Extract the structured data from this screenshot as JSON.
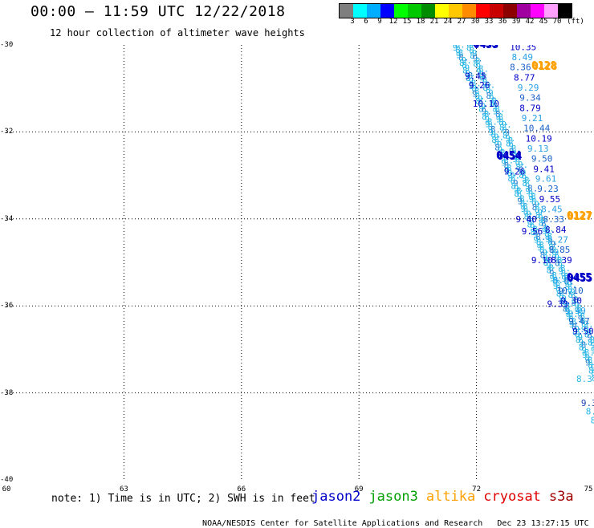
{
  "title": "00:00 – 11:59 UTC 12/22/2018",
  "subtitle": "12 hour collection of altimeter wave heights",
  "colorbar": {
    "labels": [
      "3",
      "6",
      "9",
      "12",
      "15",
      "18",
      "21",
      "24",
      "27",
      "30",
      "33",
      "36",
      "39",
      "42",
      "45",
      "70"
    ],
    "unit": "(ft)",
    "colors": [
      "#7f7f7f",
      "#00ffff",
      "#00aeff",
      "#0000ff",
      "#00ff00",
      "#00c800",
      "#008c00",
      "#ffff00",
      "#ffc800",
      "#ff8c00",
      "#ff0000",
      "#c80000",
      "#8c0000",
      "#a000a0",
      "#ff00ff",
      "#ffa0ff",
      "#000000"
    ]
  },
  "axes": {
    "y_labels": [
      "-30",
      "-32",
      "-34",
      "-36",
      "-38",
      "-40"
    ],
    "x_labels": [
      "60",
      "63",
      "66",
      "69",
      "72",
      "75"
    ]
  },
  "note": "note: 1) Time is in UTC; 2) SWH is in feet",
  "legend": [
    {
      "name": "jason2",
      "color": "#0000c8"
    },
    {
      "name": "jason3",
      "color": "#00a000"
    },
    {
      "name": "altika",
      "color": "#ffa000"
    },
    {
      "name": "cryosat",
      "color": "#e00000"
    },
    {
      "name": "s3a",
      "color": "#a00000"
    }
  ],
  "footer_left": "NOAA/NESDIS Center for Satellite Applications and Research",
  "footer_right": "Dec 23 13:27:15 UTC 2018",
  "map_data": {
    "lat_range": [
      -40,
      -30
    ],
    "lon_range": [
      60,
      75
    ],
    "time_labels": [
      {
        "text": "0453",
        "lon": 71.9,
        "lat": -30.05,
        "color": "#0000c8"
      },
      {
        "text": "0128",
        "lon": 73.4,
        "lat": -30.55,
        "color": "#ffa000"
      },
      {
        "text": "0454",
        "lon": 72.5,
        "lat": -32.62,
        "color": "#0000c8"
      },
      {
        "text": "0127",
        "lon": 74.3,
        "lat": -34.0,
        "color": "#ffa000"
      },
      {
        "text": "0455",
        "lon": 74.3,
        "lat": -35.42,
        "color": "#0000c8"
      }
    ],
    "orange_track": [
      {
        "v": "10.35",
        "lon": 72.85,
        "lat": -30.12
      },
      {
        "v": "8.49",
        "lon": 72.9,
        "lat": -30.35
      },
      {
        "v": "8.36",
        "lon": 72.85,
        "lat": -30.58
      },
      {
        "v": "8.77",
        "lon": 72.95,
        "lat": -30.82
      },
      {
        "v": "9.29",
        "lon": 73.05,
        "lat": -31.05
      },
      {
        "v": "9.34",
        "lon": 73.1,
        "lat": -31.28
      },
      {
        "v": "8.79",
        "lon": 73.1,
        "lat": -31.52
      },
      {
        "v": "9.21",
        "lon": 73.15,
        "lat": -31.75
      },
      {
        "v": "10.44",
        "lon": 73.2,
        "lat": -31.98
      },
      {
        "v": "10.19",
        "lon": 73.25,
        "lat": -32.22
      },
      {
        "v": "9.13",
        "lon": 73.3,
        "lat": -32.45
      },
      {
        "v": "9.50",
        "lon": 73.4,
        "lat": -32.68
      },
      {
        "v": "9.41",
        "lon": 73.45,
        "lat": -32.92
      },
      {
        "v": "9.61",
        "lon": 73.5,
        "lat": -33.15
      },
      {
        "v": "9.23",
        "lon": 73.55,
        "lat": -33.38
      },
      {
        "v": "9.55",
        "lon": 73.6,
        "lat": -33.62
      },
      {
        "v": "8.45",
        "lon": 73.65,
        "lat": -33.85
      },
      {
        "v": "8.33",
        "lon": 73.7,
        "lat": -34.08
      },
      {
        "v": "8.84",
        "lon": 73.75,
        "lat": -34.32
      },
      {
        "v": "9.27",
        "lon": 73.8,
        "lat": -34.55
      },
      {
        "v": "8.85",
        "lon": 73.85,
        "lat": -34.78
      },
      {
        "v": "8.39",
        "lon": 73.9,
        "lat": -35.02
      },
      {
        "v": "8.67",
        "lon": 73.95,
        "lat": -35.48
      },
      {
        "v": "10.10",
        "lon": 74.05,
        "lat": -35.72
      },
      {
        "v": "9.30",
        "lon": 74.15,
        "lat": -35.95
      },
      {
        "v": "9.49",
        "lon": 74.25,
        "lat": -36.18
      },
      {
        "v": "9.47",
        "lon": 74.35,
        "lat": -36.42
      },
      {
        "v": "9.50",
        "lon": 74.45,
        "lat": -36.65
      }
    ],
    "dense_track_labels": [
      {
        "v": "9.45",
        "lon": 71.7,
        "lat": -30.78
      },
      {
        "v": "9.26",
        "lon": 71.8,
        "lat": -31.0
      },
      {
        "v": "10.10",
        "lon": 71.9,
        "lat": -31.42
      },
      {
        "v": "9.26",
        "lon": 72.7,
        "lat": -32.98
      },
      {
        "v": "9.40",
        "lon": 73.0,
        "lat": -34.08
      },
      {
        "v": "9.56",
        "lon": 73.15,
        "lat": -34.35
      },
      {
        "v": "9.10",
        "lon": 73.4,
        "lat": -35.02
      },
      {
        "v": "9.33",
        "lon": 73.8,
        "lat": -36.02
      }
    ]
  }
}
